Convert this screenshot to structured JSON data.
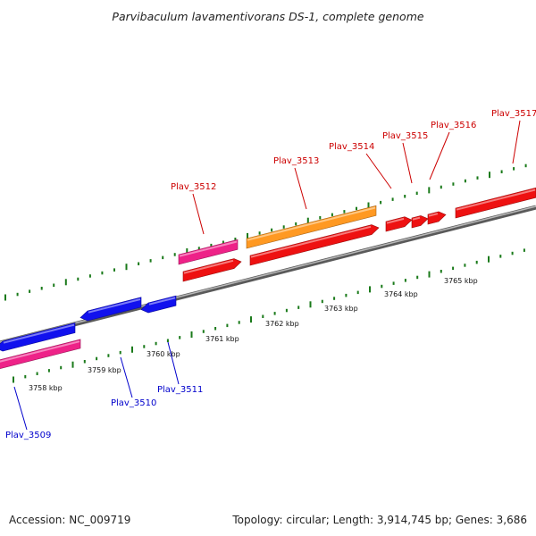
{
  "title": "Parvibaculum lavamentivorans DS-1, complete genome",
  "footer": {
    "accession": "Accession: NC_009719",
    "summary": "Topology: circular; Length: 3,914,745 bp; Genes: 3,686"
  },
  "colors": {
    "backbone": "#808080",
    "tick": "#1a7a1a",
    "forward_label": "#cc0000",
    "reverse_label": "#0000cc",
    "red": "#ee1111",
    "orange": "#ff9922",
    "magenta": "#ee2288",
    "blue": "#1111ee"
  },
  "scale_labels": [
    "3758 kbp",
    "3759 kbp",
    "3760 kbp",
    "3761 kbp",
    "3762 kbp",
    "3763 kbp",
    "3764 kbp",
    "3765 kbp"
  ],
  "forward_genes": [
    {
      "name": "Plav_3512",
      "color": "red"
    },
    {
      "name": "Plav_3513",
      "color": "red"
    },
    {
      "name": "Plav_3514",
      "color": "red"
    },
    {
      "name": "Plav_3515",
      "color": "red"
    },
    {
      "name": "Plav_3516",
      "color": "red"
    },
    {
      "name": "Plav_3517",
      "color": "red"
    }
  ],
  "reverse_genes": [
    {
      "name": "Plav_3509",
      "color": "blue"
    },
    {
      "name": "Plav_3510",
      "color": "blue"
    },
    {
      "name": "Plav_3511",
      "color": "blue"
    }
  ]
}
